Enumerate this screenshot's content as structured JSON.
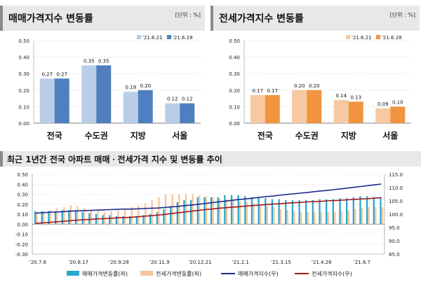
{
  "chart_data": [
    {
      "type": "bar",
      "title": "매매가격지수 변동률",
      "unit_label": "[단위 : %]",
      "categories": [
        "전국",
        "수도권",
        "지방",
        "서울"
      ],
      "series": [
        {
          "name": "'21.6.21",
          "values": [
            0.27,
            0.35,
            0.19,
            0.12
          ],
          "color": "#b9cde6"
        },
        {
          "name": "'21.6.28",
          "values": [
            0.27,
            0.35,
            0.2,
            0.12
          ],
          "color": "#4f7fbf"
        }
      ],
      "yticks": [
        "0.50",
        "0.40",
        "0.30",
        "0.20",
        "0.10",
        "0.00"
      ],
      "ylim": [
        0,
        0.5
      ],
      "grid": true,
      "legend": "top-right"
    },
    {
      "type": "bar",
      "title": "전세가격지수 변동률",
      "unit_label": "[단위 : %]",
      "categories": [
        "전국",
        "수도권",
        "지방",
        "서울"
      ],
      "series": [
        {
          "name": "'21.6.21",
          "values": [
            0.17,
            0.2,
            0.14,
            0.09
          ],
          "color": "#f7c9a3"
        },
        {
          "name": "'21.6.28",
          "values": [
            0.17,
            0.2,
            0.13,
            0.1
          ],
          "color": "#f0943f"
        }
      ],
      "yticks": [
        "0.50",
        "0.40",
        "0.30",
        "0.20",
        "0.10",
        "0.00"
      ],
      "ylim": [
        0,
        0.5
      ],
      "grid": true,
      "legend": "top-right"
    },
    {
      "type": "bar",
      "title": "최근 1년간 전국 아파트 매매ㆍ전세가격 지수 및 변동률 추이",
      "xtick_labels": [
        "'20.7.6",
        "'20.8.17",
        "'20.9.28",
        "'20.11.9",
        "'20.12.21",
        "'21.2.1",
        "'21.3.15",
        "'21.4.26",
        "'21.6.7"
      ],
      "left_yticks": [
        "0.50",
        "0.40",
        "0.30",
        "0.20",
        "0.10",
        "0.00",
        "-0.10",
        "-0.20",
        "-0.30"
      ],
      "right_yticks": [
        "115.0",
        "110.0",
        "105.0",
        "100.0",
        "95.0",
        "90.0",
        "85.0"
      ],
      "ylim_left": [
        -0.3,
        0.5
      ],
      "ylim_right": [
        85,
        115
      ],
      "legend": "bottom",
      "series": [
        {
          "name": "매매가격변동률(좌)",
          "kind": "bar",
          "axis": "left",
          "color": "#2aa7c9",
          "values": [
            0.13,
            0.13,
            0.13,
            0.13,
            0.14,
            0.14,
            0.14,
            0.12,
            0.11,
            0.1,
            0.09,
            0.09,
            0.08,
            0.08,
            0.08,
            0.08,
            0.09,
            0.1,
            0.12,
            0.15,
            0.18,
            0.22,
            0.24,
            0.24,
            0.27,
            0.27,
            0.27,
            0.27,
            0.29,
            0.29,
            0.29,
            0.28,
            0.27,
            0.27,
            0.26,
            0.25,
            0.25,
            0.24,
            0.24,
            0.24,
            0.24,
            0.24,
            0.25,
            0.25,
            0.25,
            0.26,
            0.26,
            0.27,
            0.28,
            0.28,
            0.27,
            0.27
          ]
        },
        {
          "name": "전세가격변동률(좌)",
          "kind": "bar",
          "axis": "left",
          "color": "#f5c59c",
          "values": [
            0.12,
            0.13,
            0.14,
            0.16,
            0.17,
            0.19,
            0.18,
            0.16,
            0.14,
            0.13,
            0.12,
            0.13,
            0.14,
            0.15,
            0.17,
            0.19,
            0.21,
            0.24,
            0.27,
            0.3,
            0.3,
            0.3,
            0.3,
            0.3,
            0.29,
            0.28,
            0.27,
            0.26,
            0.25,
            0.24,
            0.23,
            0.22,
            0.21,
            0.19,
            0.18,
            0.17,
            0.15,
            0.14,
            0.13,
            0.12,
            0.12,
            0.12,
            0.12,
            0.12,
            0.12,
            0.13,
            0.14,
            0.15,
            0.16,
            0.17,
            0.17,
            0.17
          ]
        },
        {
          "name": "매매가격지수(우)",
          "kind": "line",
          "axis": "right",
          "color": "#1f2a8c",
          "values": [
            100.4,
            100.5,
            100.7,
            100.8,
            100.9,
            101.1,
            101.2,
            101.3,
            101.4,
            101.5,
            101.6,
            101.7,
            101.8,
            101.9,
            101.9,
            102.0,
            102.1,
            102.2,
            102.3,
            102.5,
            102.7,
            102.9,
            103.2,
            103.4,
            103.7,
            104.0,
            104.3,
            104.6,
            104.9,
            105.2,
            105.5,
            105.7,
            106.0,
            106.3,
            106.6,
            106.8,
            107.1,
            107.4,
            107.6,
            107.9,
            108.1,
            108.4,
            108.7,
            108.9,
            109.2,
            109.5,
            109.8,
            110.1,
            110.4,
            110.7,
            111.0,
            111.3
          ]
        },
        {
          "name": "전세가격지수(우)",
          "kind": "line",
          "axis": "right",
          "color": "#a4161a",
          "values": [
            96.5,
            96.7,
            96.9,
            97.1,
            97.3,
            97.5,
            97.7,
            97.9,
            98.0,
            98.2,
            98.3,
            98.4,
            98.6,
            98.7,
            98.8,
            99.0,
            99.2,
            99.4,
            99.6,
            99.9,
            100.2,
            100.5,
            100.8,
            101.1,
            101.4,
            101.7,
            101.9,
            102.2,
            102.4,
            102.6,
            102.8,
            103.0,
            103.2,
            103.4,
            103.6,
            103.8,
            103.9,
            104.1,
            104.3,
            104.4,
            104.6,
            104.7,
            104.8,
            105.0,
            105.1,
            105.2,
            105.4,
            105.5,
            105.7,
            105.8,
            106.0,
            106.2
          ]
        }
      ]
    }
  ]
}
